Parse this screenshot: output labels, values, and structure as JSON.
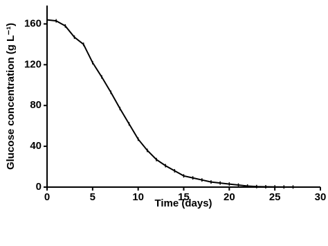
{
  "chart_data": {
    "type": "line",
    "x_label": "Time  (days)",
    "y_label": "Glucose concentration (g L⁻¹)",
    "x": [
      0,
      1,
      2,
      3,
      4,
      5,
      6,
      7,
      8,
      9,
      10,
      11,
      12,
      13,
      14,
      15,
      16,
      17,
      18,
      19,
      20,
      21,
      22,
      23,
      24,
      25,
      26,
      27
    ],
    "series": [
      {
        "color": "#000000",
        "values": [
          164,
          163,
          158,
          147,
          140,
          122,
          108,
          93,
          77,
          62,
          47,
          36,
          27,
          21,
          16,
          11,
          9,
          7,
          5,
          4,
          3,
          2,
          1,
          0.5,
          0.3,
          0.2,
          0.1,
          0.1
        ]
      }
    ],
    "xlim": [
      0,
      30
    ],
    "ylim": [
      0,
      178
    ],
    "xticks": [
      0,
      5,
      10,
      15,
      20,
      25,
      30
    ],
    "yticks": [
      0,
      40,
      80,
      120,
      160
    ]
  }
}
